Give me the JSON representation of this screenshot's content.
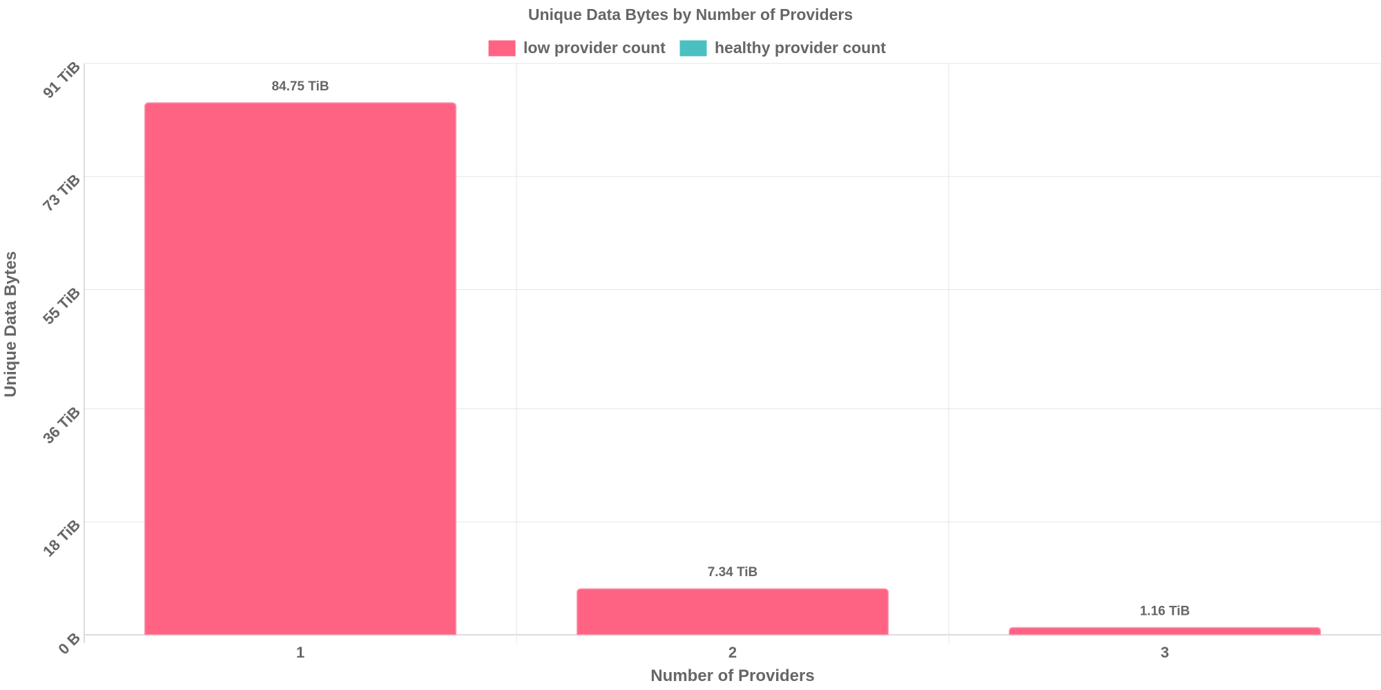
{
  "chart_data": {
    "type": "bar",
    "title": "Unique Data Bytes by Number of Providers",
    "xlabel": "Number of Providers",
    "ylabel": "Unique Data Bytes",
    "categories": [
      "1",
      "2",
      "3"
    ],
    "ylim": [
      0,
      91
    ],
    "yticks": [
      0,
      18,
      36,
      55,
      73,
      91
    ],
    "ytick_labels": [
      "0 B",
      "18 TiB",
      "36 TiB",
      "55 TiB",
      "73 TiB",
      "91 TiB"
    ],
    "grid": true,
    "legend_position": "top-center",
    "series": [
      {
        "name": "low provider count",
        "color": "#ff6384",
        "values": [
          84.75,
          7.34,
          1.16
        ],
        "labels": [
          "84.75 TiB",
          "7.34 TiB",
          "1.16 TiB"
        ]
      },
      {
        "name": "healthy provider count",
        "color": "#4bc0c0",
        "values": [
          0,
          0,
          0
        ],
        "labels": [
          "",
          "",
          ""
        ]
      }
    ]
  }
}
